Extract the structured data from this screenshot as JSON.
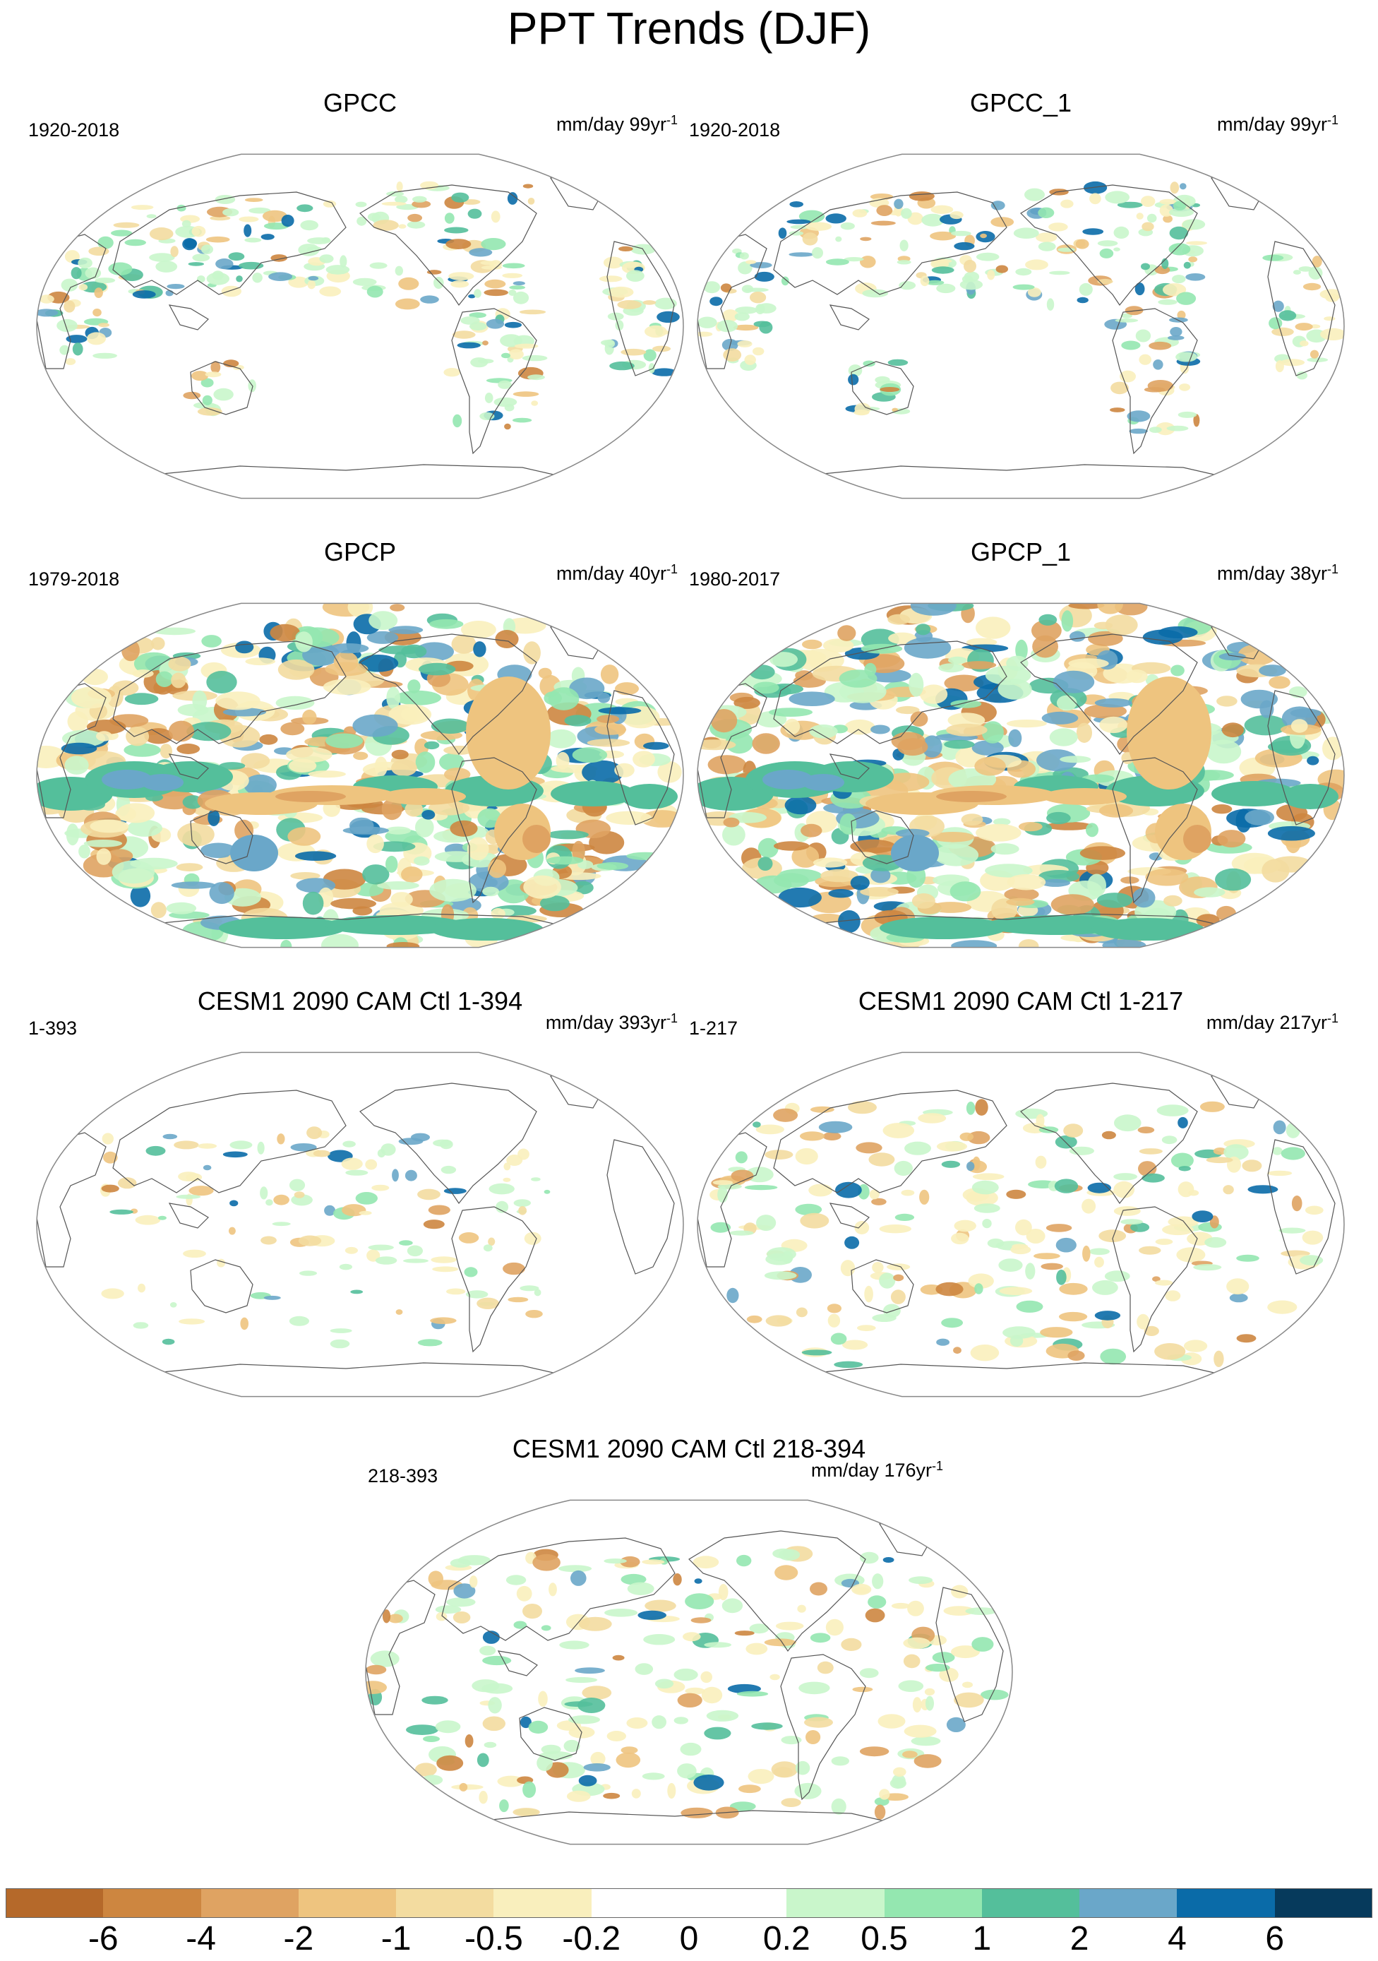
{
  "title": "PPT Trends (DJF)",
  "panels": [
    {
      "title": "GPCC",
      "period": "1920-2018",
      "units_base": "mm/day 99yr",
      "units_exp": "-1",
      "pattern": "sparse-land"
    },
    {
      "title": "GPCC_1",
      "period": "1920-2018",
      "units_base": "mm/day 99yr",
      "units_exp": "-1",
      "pattern": "sparse-land"
    },
    {
      "title": "GPCP",
      "period": "1979-2018",
      "units_base": "mm/day 40yr",
      "units_exp": "-1",
      "pattern": "strong"
    },
    {
      "title": "GPCP_1",
      "period": "1980-2017",
      "units_base": "mm/day 38yr",
      "units_exp": "-1",
      "pattern": "strong"
    },
    {
      "title": "CESM1 2090 CAM Ctl 1-394",
      "period": "1-393",
      "units_base": "mm/day 393yr",
      "units_exp": "-1",
      "pattern": "weak"
    },
    {
      "title": "CESM1 2090 CAM Ctl 1-217",
      "period": "1-217",
      "units_base": "mm/day 217yr",
      "units_exp": "-1",
      "pattern": "weak-plus"
    },
    {
      "title": "CESM1 2090 CAM Ctl 218-394",
      "period": "218-393",
      "units_base": "mm/day 176yr",
      "units_exp": "-1",
      "pattern": "weak-plus"
    }
  ],
  "colorbar": {
    "levels": [
      "-6",
      "-4",
      "-2",
      "-1",
      "-0.5",
      "-0.2",
      "0",
      "0.2",
      "0.5",
      "1",
      "2",
      "4",
      "6"
    ],
    "colors": [
      "#b5692a",
      "#cd8640",
      "#dfa362",
      "#eec47f",
      "#f3dca0",
      "#f9efbd",
      "#ffffff",
      "#ffffff",
      "#c9f6cb",
      "#94e7b0",
      "#54bf9b",
      "#6aa7c9",
      "#0a6ba8",
      "#063a5c"
    ],
    "dry_palette": [
      "#f9efbd",
      "#f3dca0",
      "#eec47f",
      "#dfa362",
      "#cd8640"
    ],
    "wet_palette": [
      "#c9f6cb",
      "#94e7b0",
      "#54bf9b",
      "#6aa7c9",
      "#0a6ba8"
    ]
  }
}
